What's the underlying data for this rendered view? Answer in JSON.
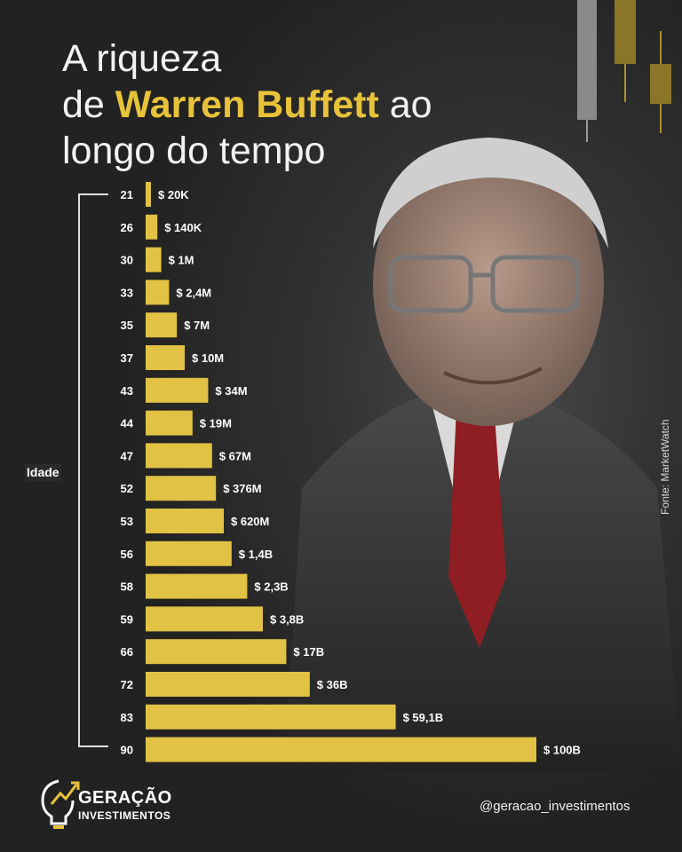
{
  "header": {
    "title_line1": "A riqueza",
    "title_line2_pre": "de ",
    "title_line2_highlight": "Warren Buffett",
    "title_line2_post": " ao",
    "title_line3": "longo do tempo"
  },
  "source": "Fonte: MarketWatch",
  "footer": {
    "handle": "@geracao_investimentos",
    "logo_line1": "GERAÇÃO",
    "logo_line2": "INVESTIMENTOS"
  },
  "colors": {
    "bar": "#e2c244",
    "accent": "#e8c33a",
    "background": "#2a2a2a"
  },
  "chart_data": {
    "type": "bar",
    "orientation": "horizontal",
    "ylabel": "Idade",
    "categories": [
      "21",
      "26",
      "30",
      "33",
      "35",
      "37",
      "43",
      "44",
      "47",
      "52",
      "53",
      "56",
      "58",
      "59",
      "66",
      "72",
      "83",
      "90"
    ],
    "values": [
      20000,
      140000,
      1000000,
      2400000,
      7000000,
      10000000,
      34000000,
      19000000,
      67000000,
      376000000,
      620000000,
      1400000000,
      2300000000,
      3800000000,
      17000000000,
      36000000000,
      59100000000,
      100000000000
    ],
    "data_labels": [
      "$ 20K",
      "$ 140K",
      "$ 1M",
      "$ 2,4M",
      "$ 7M",
      "$ 10M",
      "$ 34M",
      "$ 19M",
      "$ 67M",
      "$ 376M",
      "$ 620M",
      "$ 1,4B",
      "$ 2,3B",
      "$ 3,8B",
      "$ 17B",
      "$ 36B",
      "$ 59,1B",
      "$ 100B"
    ],
    "bar_display_units": [
      1,
      3,
      4,
      6,
      8,
      10,
      16,
      12,
      17,
      18,
      20,
      22,
      26,
      30,
      36,
      42,
      64,
      100
    ],
    "grid": false,
    "legend": "none"
  }
}
